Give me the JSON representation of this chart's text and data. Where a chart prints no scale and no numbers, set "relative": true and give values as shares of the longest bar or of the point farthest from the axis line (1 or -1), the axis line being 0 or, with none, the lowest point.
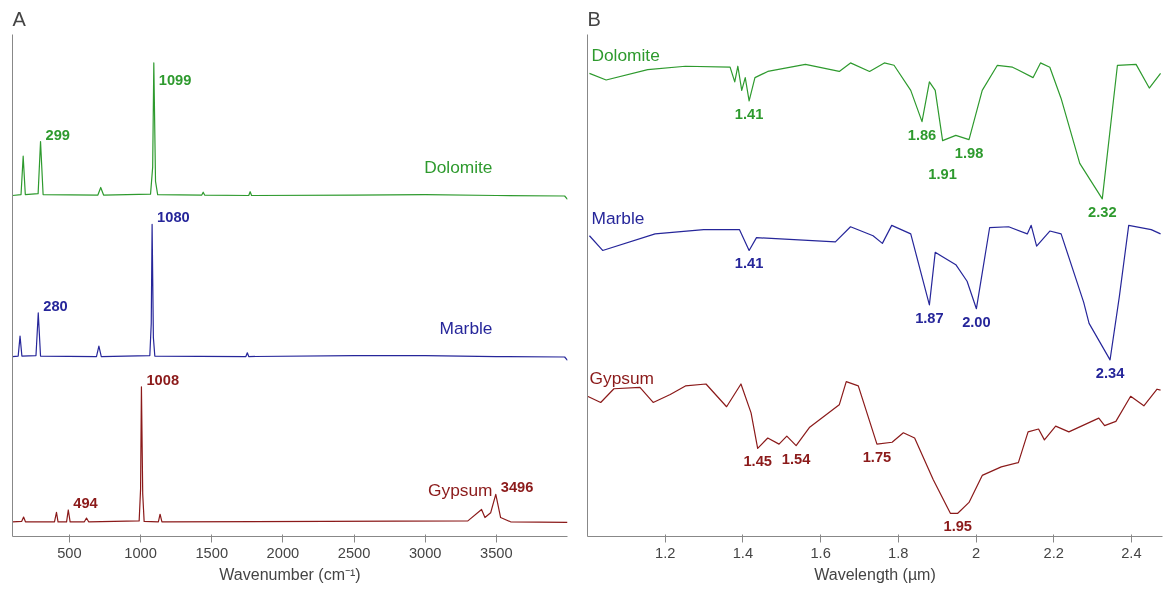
{
  "chart_data": [
    {
      "type": "line",
      "title": "A",
      "xlabel": "Wavenumber (cm⁻¹)",
      "relative": true,
      "xlim": [
        100,
        4000
      ],
      "xticks": [
        500,
        1000,
        1500,
        2000,
        2500,
        3000,
        3500
      ],
      "tick_labels": "x",
      "grid": false,
      "series": [
        {
          "name": "Dolomite",
          "color": "#2e9a2e",
          "x": [
            100,
            160,
            175,
            190,
            280,
            297,
            315,
            700,
            720,
            740,
            1070,
            1085,
            1093,
            1105,
            1120,
            1430,
            1440,
            1450,
            1760,
            1770,
            1780,
            2500,
            3000,
            3500,
            3980,
            4000
          ],
          "values": [
            0.72,
            0.722,
            0.803,
            0.722,
            0.724,
            0.834,
            0.722,
            0.721,
            0.737,
            0.721,
            0.723,
            0.78,
            1.0,
            0.75,
            0.722,
            0.721,
            0.727,
            0.721,
            0.72,
            0.728,
            0.72,
            0.721,
            0.722,
            0.72,
            0.719,
            0.712
          ]
        },
        {
          "name": "Marble",
          "color": "#26269a",
          "x": [
            100,
            140,
            153,
            166,
            265,
            281,
            297,
            690,
            707,
            724,
            1065,
            1075,
            1081,
            1090,
            1100,
            1740,
            1750,
            1760,
            2500,
            3000,
            3500,
            3980,
            4000
          ],
          "values": [
            0.38,
            0.381,
            0.423,
            0.381,
            0.382,
            0.472,
            0.381,
            0.38,
            0.402,
            0.38,
            0.382,
            0.45,
            0.659,
            0.42,
            0.381,
            0.38,
            0.388,
            0.38,
            0.382,
            0.382,
            0.38,
            0.379,
            0.372
          ]
        },
        {
          "name": "Gypsum",
          "color": "#8b1a1a",
          "x": [
            100,
            165,
            178,
            191,
            395,
            409,
            420,
            480,
            492,
            505,
            605,
            620,
            635,
            990,
            1000,
            1006,
            1015,
            1025,
            1125,
            1137,
            1150,
            3300,
            3396,
            3420,
            3460,
            3496,
            3530,
            3600,
            4000
          ],
          "values": [
            0.031,
            0.032,
            0.041,
            0.031,
            0.031,
            0.051,
            0.031,
            0.031,
            0.056,
            0.031,
            0.031,
            0.039,
            0.031,
            0.033,
            0.1,
            0.316,
            0.09,
            0.032,
            0.031,
            0.047,
            0.031,
            0.033,
            0.057,
            0.04,
            0.05,
            0.089,
            0.04,
            0.031,
            0.03
          ]
        }
      ],
      "annotations": [
        {
          "text": "299",
          "x": 297,
          "y": 0.834
        },
        {
          "text": "1099",
          "x": 1093,
          "y": 1.0
        },
        {
          "text": "280",
          "x": 281,
          "y": 0.472
        },
        {
          "text": "1080",
          "x": 1081,
          "y": 0.659
        },
        {
          "text": "494",
          "x": 492,
          "y": 0.056
        },
        {
          "text": "1008",
          "x": 1006,
          "y": 0.316
        },
        {
          "text": "3496",
          "x": 3496,
          "y": 0.089
        }
      ]
    },
    {
      "type": "line",
      "title": "B",
      "xlabel": "Wavelength (µm)",
      "relative": true,
      "xlim": [
        1.0,
        2.48
      ],
      "xticks": [
        1.2,
        1.4,
        1.6,
        1.8,
        {
          "value": 2.0,
          "label": "2"
        },
        2.2,
        2.4
      ],
      "tick_labels": "x",
      "grid": false,
      "series": [
        {
          "name": "Dolomite",
          "color": "#2e9a2e",
          "x": [
            1.005,
            1.048,
            1.155,
            1.252,
            1.367,
            1.379,
            1.387,
            1.397,
            1.406,
            1.416,
            1.431,
            1.464,
            1.561,
            1.648,
            1.677,
            1.726,
            1.764,
            1.789,
            1.832,
            1.861,
            1.88,
            1.895,
            1.914,
            1.948,
            1.982,
            2.016,
            2.055,
            2.094,
            2.147,
            2.166,
            2.19,
            2.219,
            2.267,
            2.325,
            2.364,
            2.412,
            2.446,
            2.475
          ],
          "values": [
            0.978,
            0.964,
            0.986,
            0.993,
            0.991,
            0.96,
            0.993,
            0.942,
            0.969,
            0.92,
            0.969,
            0.982,
            0.997,
            0.982,
            1.0,
            0.982,
            1.0,
            0.995,
            0.942,
            0.876,
            0.96,
            0.942,
            0.836,
            0.847,
            0.838,
            0.942,
            0.995,
            0.991,
            0.969,
            1.0,
            0.991,
            0.925,
            0.788,
            0.713,
            0.995,
            0.997,
            0.947,
            0.978
          ]
        },
        {
          "name": "Marble",
          "color": "#26269a",
          "x": [
            1.005,
            1.039,
            1.174,
            1.299,
            1.391,
            1.416,
            1.435,
            1.638,
            1.677,
            1.735,
            1.759,
            1.783,
            1.832,
            1.88,
            1.895,
            1.948,
            1.977,
            2.001,
            2.035,
            2.084,
            2.132,
            2.142,
            2.156,
            2.19,
            2.219,
            2.277,
            2.291,
            2.345,
            2.369,
            2.393,
            2.451,
            2.475
          ],
          "values": [
            0.635,
            0.604,
            0.639,
            0.648,
            0.648,
            0.604,
            0.631,
            0.622,
            0.654,
            0.635,
            0.619,
            0.657,
            0.639,
            0.489,
            0.6,
            0.574,
            0.539,
            0.481,
            0.652,
            0.654,
            0.639,
            0.657,
            0.613,
            0.645,
            0.639,
            0.495,
            0.45,
            0.373,
            0.507,
            0.657,
            0.648,
            0.639
          ]
        },
        {
          "name": "Gypsum",
          "color": "#8b1a1a",
          "x": [
            1.0,
            1.034,
            1.068,
            1.135,
            1.169,
            1.213,
            1.252,
            1.305,
            1.358,
            1.395,
            1.421,
            1.438,
            1.464,
            1.493,
            1.513,
            1.537,
            1.571,
            1.648,
            1.666,
            1.697,
            1.745,
            1.784,
            1.813,
            1.842,
            1.89,
            1.934,
            1.953,
            1.982,
            2.016,
            2.065,
            2.109,
            2.134,
            2.161,
            2.176,
            2.205,
            2.239,
            2.316,
            2.331,
            2.36,
            2.398,
            2.432,
            2.466,
            2.475
          ],
          "values": [
            0.296,
            0.283,
            0.312,
            0.315,
            0.283,
            0.3,
            0.318,
            0.322,
            0.274,
            0.322,
            0.261,
            0.186,
            0.208,
            0.195,
            0.212,
            0.192,
            0.23,
            0.278,
            0.327,
            0.318,
            0.195,
            0.199,
            0.219,
            0.208,
            0.12,
            0.049,
            0.049,
            0.072,
            0.129,
            0.147,
            0.156,
            0.221,
            0.227,
            0.204,
            0.233,
            0.221,
            0.25,
            0.234,
            0.243,
            0.296,
            0.276,
            0.311,
            0.309
          ]
        }
      ],
      "annotations": [
        {
          "text": "1.41",
          "x": 1.416,
          "y": 0.92
        },
        {
          "text": "1.86",
          "x": 1.861,
          "y": 0.876
        },
        {
          "text": "1.91",
          "x": 1.914,
          "y": 0.836
        },
        {
          "text": "1.98",
          "x": 1.982,
          "y": 0.838
        },
        {
          "text": "2.32",
          "x": 2.325,
          "y": 0.713
        },
        {
          "text": "1.41",
          "x": 1.416,
          "y": 0.604
        },
        {
          "text": "1.87",
          "x": 1.88,
          "y": 0.489
        },
        {
          "text": "2.00",
          "x": 2.001,
          "y": 0.481
        },
        {
          "text": "2.34",
          "x": 2.345,
          "y": 0.373
        },
        {
          "text": "1.45",
          "x": 1.438,
          "y": 0.186
        },
        {
          "text": "1.54",
          "x": 1.537,
          "y": 0.192
        },
        {
          "text": "1.75",
          "x": 1.745,
          "y": 0.195
        },
        {
          "text": "1.95",
          "x": 1.953,
          "y": 0.049
        }
      ]
    }
  ]
}
